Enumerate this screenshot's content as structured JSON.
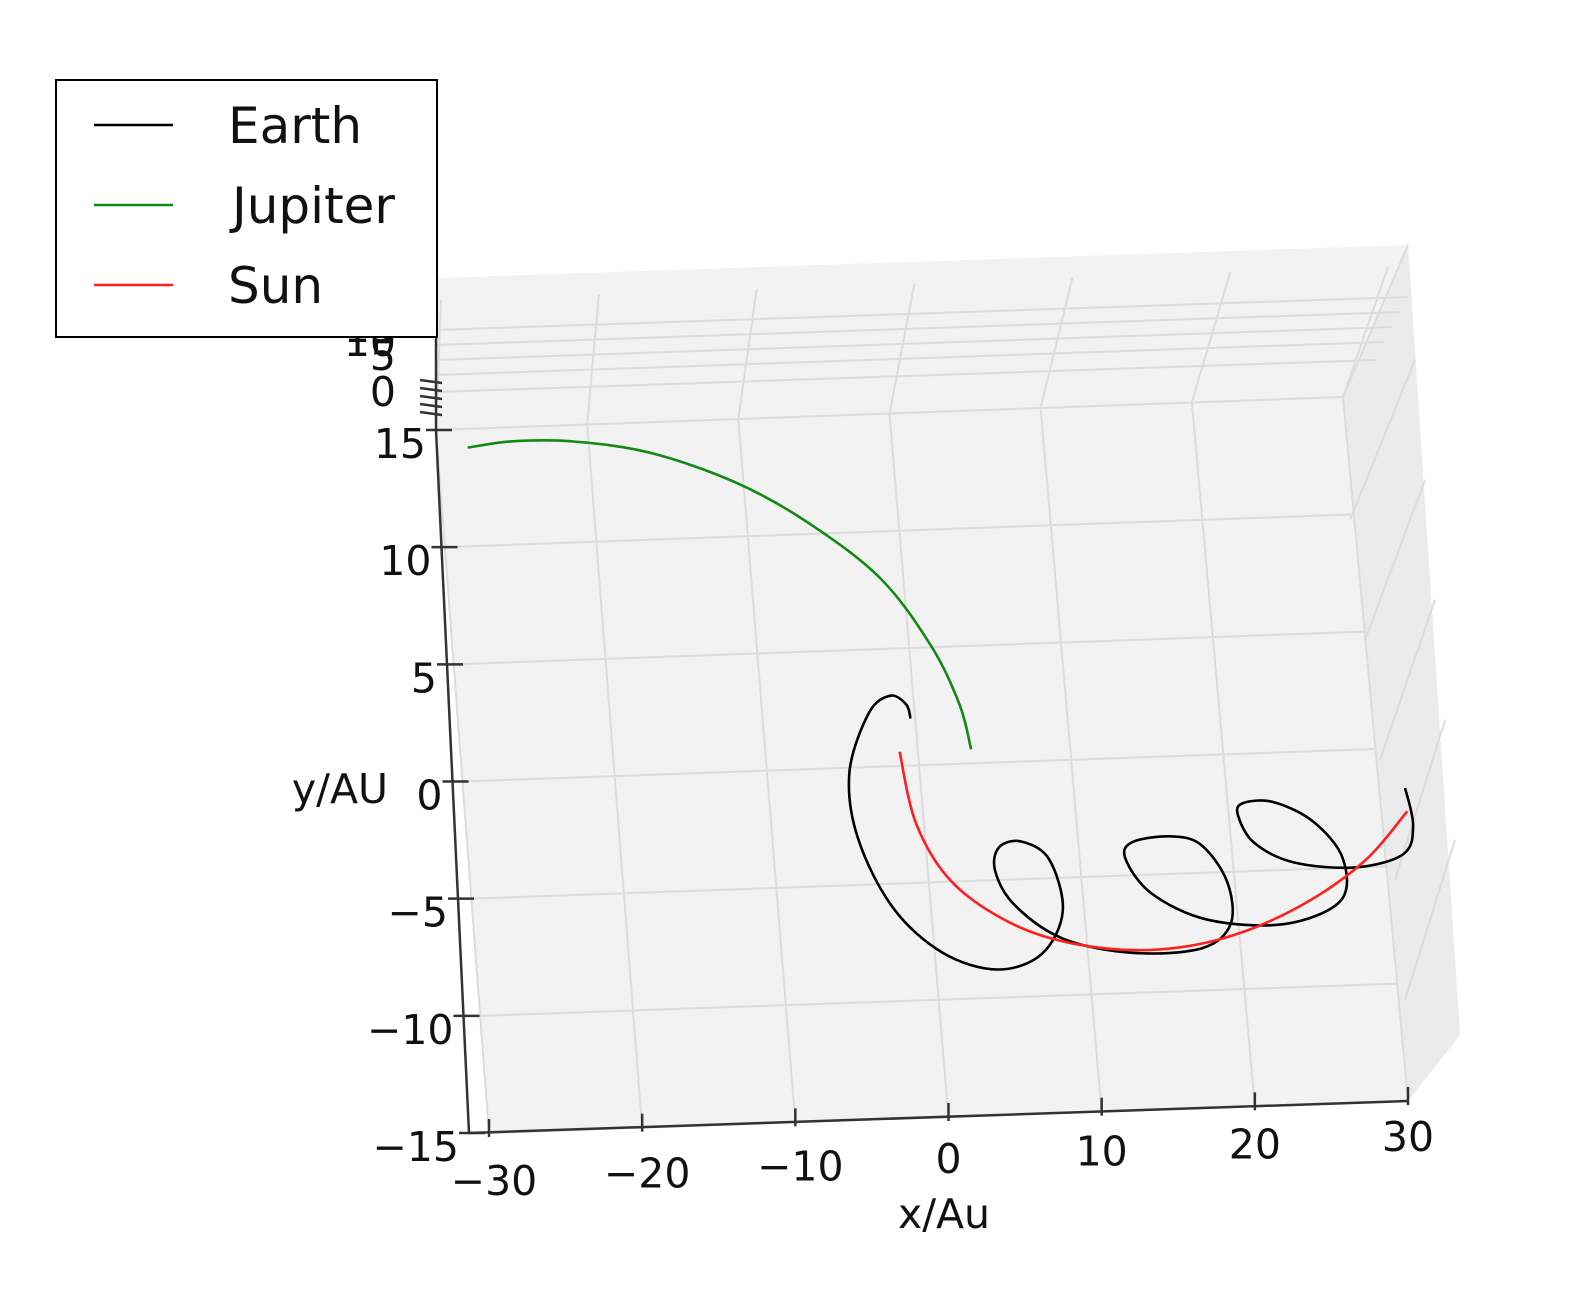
{
  "chart_data": {
    "type": "line",
    "projection": "3d",
    "xlabel": "x/Au",
    "ylabel": "y/AU",
    "zlabel": "",
    "xlim": [
      -30,
      30
    ],
    "ylim": [
      -15,
      15
    ],
    "x_ticks": [
      "−30",
      "−20",
      "−10",
      "0",
      "10",
      "20",
      "30"
    ],
    "y_ticks": [
      "−15",
      "−10",
      "−5",
      "0",
      "5",
      "10",
      "15"
    ],
    "z_ticks": [
      "0",
      "5",
      "10",
      "15"
    ],
    "grid": true,
    "legend_position": "top-left",
    "series": [
      {
        "name": "Earth",
        "color": "#000000",
        "points": [
          [
            -0.3,
            2.0
          ],
          [
            -0.5,
            2.6
          ],
          [
            -1.5,
            3.0
          ],
          [
            -3.0,
            2.3
          ],
          [
            -4.6,
            -0.2
          ],
          [
            -4.4,
            -3.0
          ],
          [
            -2.5,
            -6.0
          ],
          [
            0.5,
            -8.0
          ],
          [
            4.0,
            -8.8
          ],
          [
            7.0,
            -8.2
          ],
          [
            8.6,
            -6.4
          ],
          [
            8.0,
            -4.2
          ],
          [
            6.3,
            -3.4
          ],
          [
            4.8,
            -3.6
          ],
          [
            4.4,
            -4.6
          ],
          [
            5.5,
            -6.1
          ],
          [
            8.5,
            -7.6
          ],
          [
            13.0,
            -8.3
          ],
          [
            17.5,
            -8.2
          ],
          [
            19.5,
            -7.2
          ],
          [
            19.5,
            -5.4
          ],
          [
            18.0,
            -3.8
          ],
          [
            16.0,
            -3.4
          ],
          [
            13.5,
            -3.6
          ],
          [
            13.0,
            -4.3
          ],
          [
            14.5,
            -5.8
          ],
          [
            18.0,
            -7.0
          ],
          [
            23.0,
            -7.3
          ],
          [
            26.8,
            -6.4
          ],
          [
            27.2,
            -4.6
          ],
          [
            25.5,
            -3.0
          ],
          [
            23.0,
            -2.1
          ],
          [
            21.0,
            -2.1
          ],
          [
            20.6,
            -2.6
          ],
          [
            21.5,
            -3.8
          ],
          [
            24.0,
            -4.7
          ],
          [
            28.0,
            -5.0
          ],
          [
            31.2,
            -4.5
          ],
          [
            32.0,
            -3.3
          ],
          [
            31.7,
            -1.7
          ]
        ]
      },
      {
        "name": "Jupiter",
        "color": "#128a12",
        "points": [
          [
            3.5,
            0.6
          ],
          [
            3.0,
            2.5
          ],
          [
            1.5,
            5.0
          ],
          [
            -1.5,
            8.0
          ],
          [
            -6.0,
            10.5
          ],
          [
            -10.5,
            12.3
          ],
          [
            -16.0,
            13.7
          ],
          [
            -21.0,
            14.3
          ],
          [
            -25.0,
            14.4
          ],
          [
            -28.0,
            14.2
          ]
        ]
      },
      {
        "name": "Sun",
        "color": "#ff1f1f",
        "points": [
          [
            -1.2,
            0.6
          ],
          [
            -0.5,
            -2.5
          ],
          [
            1.5,
            -5.0
          ],
          [
            5.0,
            -6.8
          ],
          [
            9.0,
            -7.8
          ],
          [
            14.0,
            -8.2
          ],
          [
            19.0,
            -7.8
          ],
          [
            24.0,
            -6.6
          ],
          [
            28.5,
            -4.8
          ],
          [
            31.7,
            -2.7
          ]
        ]
      }
    ]
  }
}
